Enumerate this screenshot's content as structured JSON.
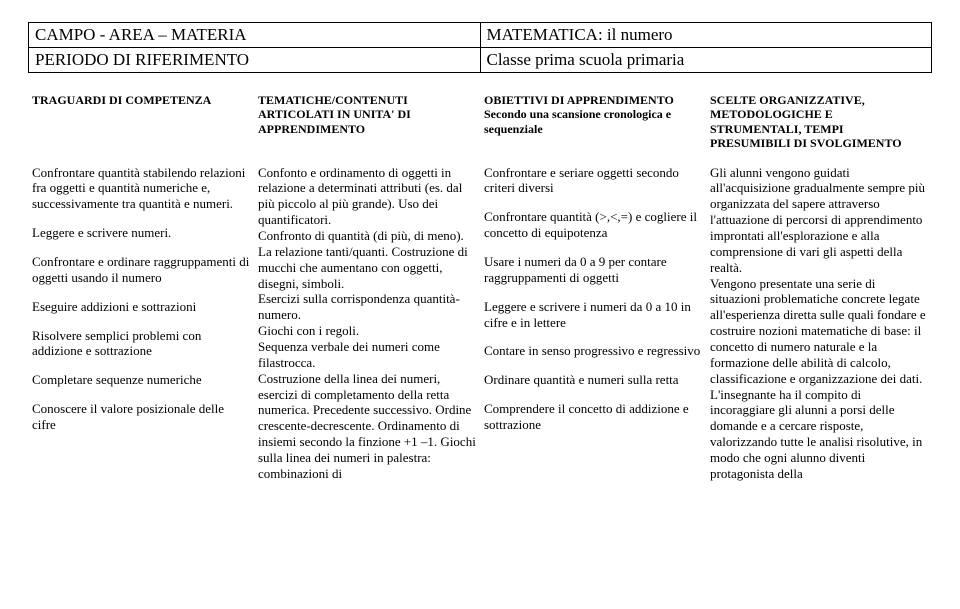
{
  "header": {
    "r1c1": "CAMPO -  AREA – MATERIA",
    "r1c2": "MATEMATICA: il numero",
    "r2c1": "PERIODO DI RIFERIMENTO",
    "r2c2": "Classe prima scuola primaria"
  },
  "columns": {
    "c1": {
      "head": "TRAGUARDI DI COMPETENZA"
    },
    "c2": {
      "head_l1": "TEMATICHE/CONTENUTI",
      "head_l2": "ARTICOLATI IN UNITA' DI",
      "head_l3": "APPRENDIMENTO"
    },
    "c3": {
      "head_l1": "OBIETTIVI DI APPRENDIMENTO",
      "head_l2": "Secondo una scansione cronologica e sequenziale"
    },
    "c4": {
      "head_l1": "SCELTE ORGANIZZATIVE,",
      "head_l2": "METODOLOGICHE E",
      "head_l3": "STRUMENTALI, TEMPI",
      "head_l4": "PRESUMIBILI DI SVOLGIMENTO"
    }
  },
  "body": {
    "c1": {
      "p1": "Confrontare quantità stabilendo relazioni fra oggetti e quantità numeriche e, successivamente tra quantità e numeri.",
      "p2": "Leggere e scrivere numeri.",
      "p3": "Confrontare e ordinare raggruppamenti di oggetti usando il numero",
      "p4": "Eseguire addizioni e sottrazioni",
      "p5": "Risolvere semplici problemi con addizione e sottrazione",
      "p6": "Completare sequenze numeriche",
      "p7": "Conoscere il valore posizionale delle cifre"
    },
    "c2": {
      "p1": "Confonto e ordinamento di oggetti in relazione a determinati attributi (es. dal più piccolo al più grande). Uso dei quantificatori.",
      "p2": "Confronto di quantità (di più, di meno).",
      "p3": "La relazione tanti/quanti. Costruzione di mucchi che aumentano con oggetti, disegni, simboli.",
      "p4": "Esercizi sulla corrispondenza quantità-numero.",
      "p5": "Giochi con i regoli.",
      "p6": "Sequenza verbale dei numeri come filastrocca.",
      "p7": "Costruzione della linea dei numeri, esercizi di completamento della retta numerica. Precedente successivo. Ordine crescente-decrescente. Ordinamento di insiemi secondo la finzione +1 –1. Giochi sulla linea dei numeri in palestra: combinazioni di"
    },
    "c3": {
      "p1": "Confrontare e seriare oggetti secondo criteri diversi",
      "p2": "Confrontare quantità (>,<,=) e cogliere il concetto di equipotenza",
      "p3": "Usare i numeri da 0 a 9 per contare raggruppamenti di oggetti",
      "p4": "Leggere e scrivere i numeri da 0 a 10 in cifre e in lettere",
      "p5": "Contare in senso progressivo e regressivo",
      "p6": "Ordinare quantità e numeri sulla retta",
      "p7": "Comprendere il concetto di addizione e sottrazione"
    },
    "c4": {
      "p1": "Gli alunni vengono guidati all'acquisizione gradualmente sempre più organizzata del sapere attraverso l'attuazione di percorsi di apprendimento improntati all'esplorazione e alla comprensione di vari gli aspetti della realtà.",
      "p2": "Vengono presentate una serie di situazioni problematiche concrete legate all'esperienza diretta sulle quali fondare e costruire nozioni matematiche di base: il concetto di numero naturale e la formazione delle abilità di calcolo, classificazione e organizzazione dei dati.",
      "p3": "L'insegnante ha il compito di incoraggiare gli alunni a porsi delle domande e a cercare risposte, valorizzando tutte le analisi risolutive, in modo che ogni alunno diventi protagonista della"
    }
  }
}
